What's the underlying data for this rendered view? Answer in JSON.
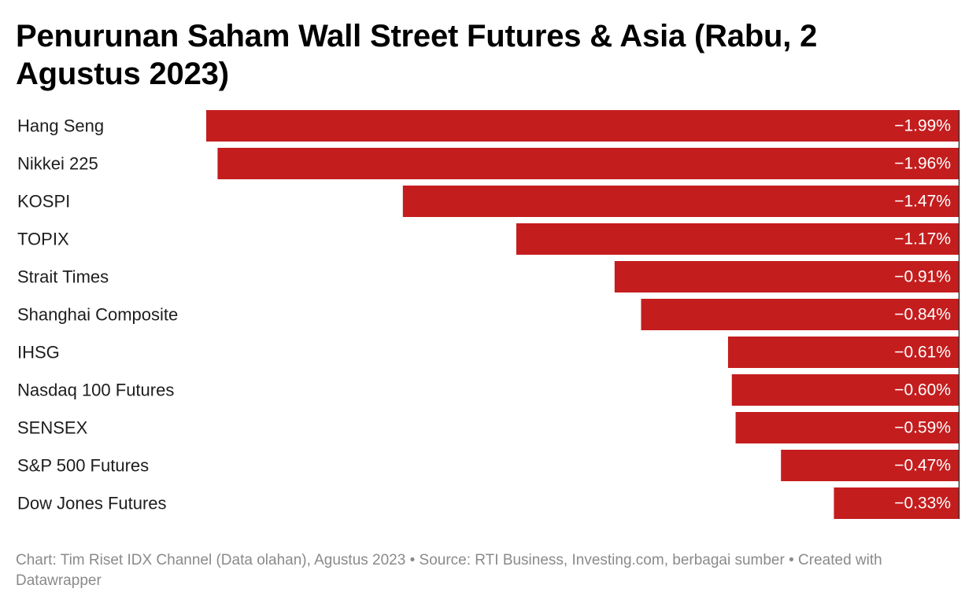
{
  "chart_data": {
    "type": "bar",
    "orientation": "horizontal",
    "title": "Penurunan Saham Wall Street Futures & Asia (Rabu, 2 Agustus 2023)",
    "categories": [
      "Hang Seng",
      "Nikkei 225",
      "KOSPI",
      "TOPIX",
      "Strait Times",
      "Shanghai Composite",
      "IHSG",
      "Nasdaq 100 Futures",
      "SENSEX",
      "S&P 500 Futures",
      "Dow Jones Futures"
    ],
    "values": [
      -1.99,
      -1.96,
      -1.47,
      -1.17,
      -0.91,
      -0.84,
      -0.61,
      -0.6,
      -0.59,
      -0.47,
      -0.33
    ],
    "value_labels": [
      "−1.99%",
      "−1.96%",
      "−1.47%",
      "−1.17%",
      "−0.91%",
      "−0.84%",
      "−0.61%",
      "−0.60%",
      "−0.59%",
      "−0.47%",
      "−0.33%"
    ],
    "unit": "%",
    "bar_color": "#c41d1e",
    "axis_line_color": "#333333",
    "xlim": [
      -1.99,
      0
    ],
    "grid": false,
    "legend": "none"
  },
  "footer": {
    "credit": "Chart: Tim Riset IDX Channel (Data olahan), Agustus 2023 • Source: RTI Business, Investing.com, berbagai sumber • Created with Datawrapper"
  }
}
